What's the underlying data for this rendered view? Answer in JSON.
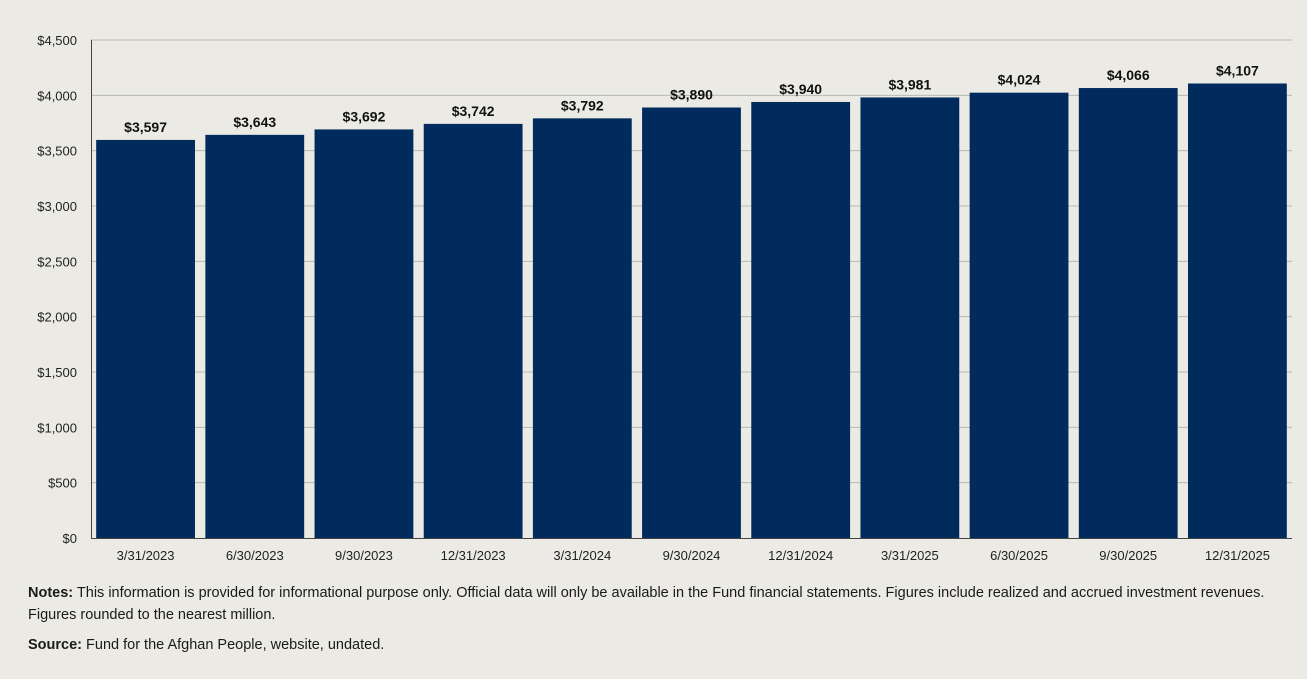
{
  "chart_data": {
    "type": "bar",
    "categories": [
      "3/31/2023",
      "6/30/2023",
      "9/30/2023",
      "12/31/2023",
      "3/31/2024",
      "9/30/2024",
      "12/31/2024",
      "3/31/2025",
      "6/30/2025",
      "9/30/2025",
      "12/31/2025"
    ],
    "values": [
      3597,
      3643,
      3692,
      3742,
      3792,
      3890,
      3940,
      3981,
      4024,
      4066,
      4107
    ],
    "data_labels": [
      "$3,597",
      "$3,643",
      "$3,692",
      "$3,742",
      "$3,792",
      "$3,890",
      "$3,940",
      "$3,981",
      "$4,024",
      "$4,066",
      "$4,107"
    ],
    "y_ticks": [
      0,
      500,
      1000,
      1500,
      2000,
      2500,
      3000,
      3500,
      4000,
      4500
    ],
    "y_tick_labels": [
      "$0",
      "$500",
      "$1,000",
      "$1,500",
      "$2,000",
      "$2,500",
      "$3,000",
      "$3,500",
      "$4,000",
      "$4,500"
    ],
    "ylim": [
      0,
      4500
    ],
    "grid": true,
    "bar_color": "#002b5c",
    "title": "",
    "xlabel": "",
    "ylabel": ""
  },
  "notes": {
    "label": "Notes:",
    "text": " This information is provided for informational purpose only. Official data will only be available in the Fund financial statements. Figures include realized and accrued investment revenues. Figures rounded to the nearest million."
  },
  "source": {
    "label": "Source:",
    "text": " Fund for the Afghan People, website, undated."
  }
}
